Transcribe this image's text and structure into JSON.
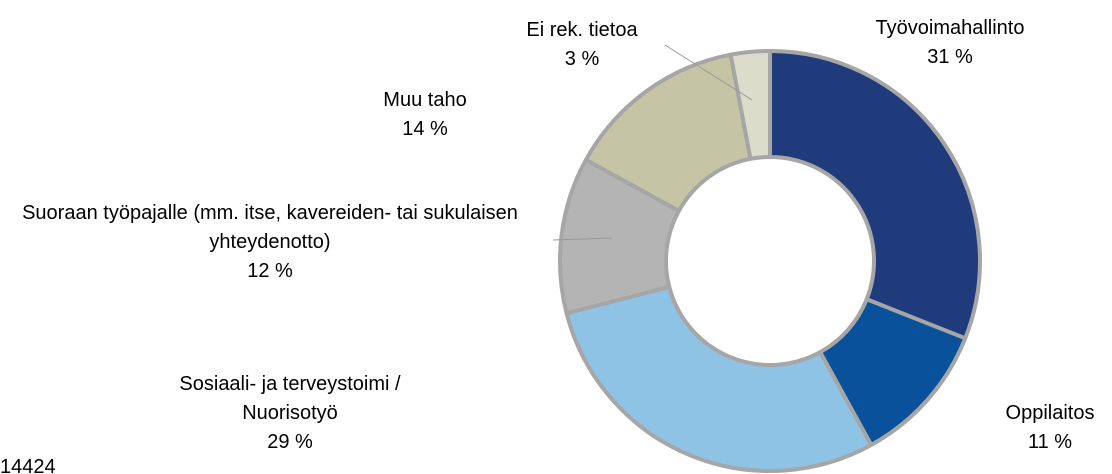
{
  "chart_data": {
    "type": "pie",
    "categories": [
      "Työvoimahallinto",
      "Oppilaitos",
      "Sosiaali- ja terveystoimi / Nuorisotyö",
      "Suoraan työpajalle (mm. itse, kavereiden- tai sukulaisen yhteydenotto)",
      "Muu taho",
      "Ei rek. tietoa"
    ],
    "values": [
      31,
      11,
      29,
      12,
      14,
      3
    ],
    "value_labels": [
      "31 %",
      "11 %",
      "29 %",
      "12 %",
      "14 %",
      "3 %"
    ],
    "colors": [
      "#1f3b7b",
      "#0a519b",
      "#8ec3e6",
      "#b4b4b4",
      "#c5c5a5",
      "#dcdccb"
    ],
    "annotation": "14424"
  }
}
